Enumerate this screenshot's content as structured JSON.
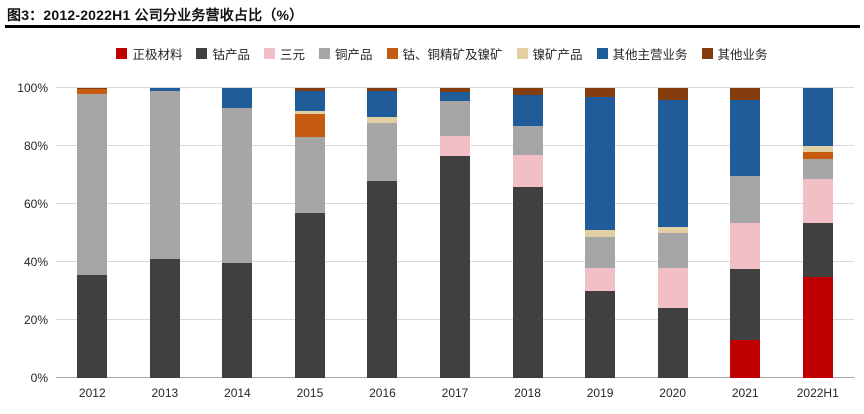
{
  "header": {
    "title": "图3：2012-2022H1 公司分业务营收占比（%）"
  },
  "chart_data": {
    "type": "bar",
    "stacked": true,
    "unit": "%",
    "title": "图3：2012-2022H1 公司分业务营收占比（%）",
    "xlabel": "",
    "ylabel": "",
    "ylim": [
      0,
      100
    ],
    "yticks": [
      "0%",
      "20%",
      "40%",
      "60%",
      "80%",
      "100%"
    ],
    "grid": true,
    "legend_position": "top",
    "categories": [
      "2012",
      "2013",
      "2014",
      "2015",
      "2016",
      "2017",
      "2018",
      "2019",
      "2020",
      "2021",
      "2022H1"
    ],
    "series": [
      {
        "name": "正极材料",
        "color": "#c00000",
        "values": [
          0,
          0,
          0,
          0,
          0,
          0,
          0,
          0,
          0,
          13,
          35
        ]
      },
      {
        "name": "钴产品",
        "color": "#404040",
        "values": [
          35.5,
          41,
          39.5,
          57,
          68,
          76.5,
          66,
          30,
          24,
          24.5,
          18.5
        ]
      },
      {
        "name": "三元",
        "color": "#f2bfc7",
        "values": [
          0,
          0,
          0,
          0,
          0,
          7,
          11,
          8,
          14,
          16,
          15
        ]
      },
      {
        "name": "铜产品",
        "color": "#a6a6a6",
        "values": [
          62.5,
          58,
          53.5,
          26,
          20,
          12,
          10,
          10.5,
          12,
          16,
          7
        ]
      },
      {
        "name": "钴、铜精矿及镍矿",
        "color": "#c55a11",
        "values": [
          1.5,
          0,
          0,
          8,
          0,
          0,
          0,
          0,
          0,
          0,
          2.5
        ]
      },
      {
        "name": "镍矿产品",
        "color": "#e3cfa4",
        "values": [
          0,
          0,
          0,
          1,
          2,
          0,
          0,
          2.5,
          2,
          0,
          2
        ]
      },
      {
        "name": "其他主营业务",
        "color": "#1f5c99",
        "values": [
          0,
          1,
          7,
          7,
          9,
          3,
          10.5,
          46,
          44,
          26.5,
          20
        ]
      },
      {
        "name": "其他业务",
        "color": "#843c0c",
        "values": [
          0.5,
          0,
          0,
          1,
          1,
          1.5,
          2.5,
          3,
          4,
          4,
          0
        ]
      }
    ]
  }
}
